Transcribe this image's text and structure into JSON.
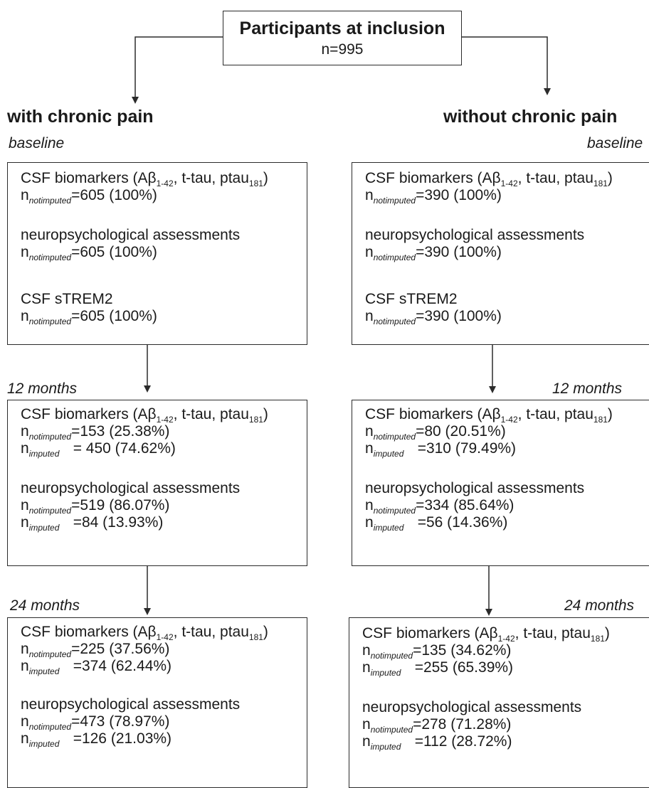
{
  "root": {
    "title": "Participants at inclusion",
    "n": "n=995"
  },
  "left": {
    "heading": "with chronic pain",
    "stages": [
      {
        "label": "baseline",
        "sections": [
          {
            "title": "CSF biomarkers (Aβ",
            "sub1": "1-42",
            "mid": ", t-tau, ptau",
            "sub2": "181",
            "end": ")",
            "counts": [
              {
                "sub": "notimputed",
                "pad": "",
                "value": "=605 (100%)"
              }
            ]
          },
          {
            "title": "neuropsychological assessments",
            "counts": [
              {
                "sub": "notimputed",
                "pad": "",
                "value": "=605 (100%)"
              }
            ]
          },
          {
            "title": "CSF sTREM2",
            "counts": [
              {
                "sub": "notimputed",
                "pad": "",
                "value": "=605 (100%)"
              }
            ]
          }
        ]
      },
      {
        "label": "12 months",
        "sections": [
          {
            "title": "CSF biomarkers (Aβ",
            "sub1": "1-42",
            "mid": ", t-tau, ptau",
            "sub2": "181",
            "end": ")",
            "counts": [
              {
                "sub": "notimputed",
                "value": "=153 (25.38%)"
              },
              {
                "sub": "imputed",
                "value": "= 450 (74.62%)"
              }
            ]
          },
          {
            "title": "neuropsychological assessments",
            "counts": [
              {
                "sub": "notimputed",
                "value": "=519 (86.07%)"
              },
              {
                "sub": "imputed",
                "value": "=84 (13.93%)"
              }
            ]
          }
        ]
      },
      {
        "label": "24 months",
        "sections": [
          {
            "title": "CSF biomarkers (Aβ",
            "sub1": "1-42",
            "mid": ", t-tau, ptau",
            "sub2": "181",
            "end": ")",
            "counts": [
              {
                "sub": "notimputed",
                "value": "=225 (37.56%)"
              },
              {
                "sub": "imputed",
                "value": "=374 (62.44%)"
              }
            ]
          },
          {
            "title": "neuropsychological assessments",
            "counts": [
              {
                "sub": "notimputed",
                "value": "=473 (78.97%)"
              },
              {
                "sub": "imputed",
                "value": "=126 (21.03%)"
              }
            ]
          }
        ]
      }
    ]
  },
  "right": {
    "heading": "without chronic pain",
    "stages": [
      {
        "label": "baseline",
        "sections": [
          {
            "title": "CSF biomarkers (Aβ",
            "sub1": "1-42",
            "mid": ", t-tau, ptau",
            "sub2": "181",
            "end": ")",
            "counts": [
              {
                "sub": "notimputed",
                "value": "=390 (100%)"
              }
            ]
          },
          {
            "title": "neuropsychological assessments",
            "counts": [
              {
                "sub": "notimputed",
                "value": "=390 (100%)"
              }
            ]
          },
          {
            "title": "CSF sTREM2",
            "counts": [
              {
                "sub": "notimputed",
                "value": "=390 (100%)"
              }
            ]
          }
        ]
      },
      {
        "label": "12 months",
        "sections": [
          {
            "title": "CSF biomarkers (Aβ",
            "sub1": "1-42",
            "mid": ", t-tau, ptau",
            "sub2": "181",
            "end": ")",
            "counts": [
              {
                "sub": "notimputed",
                "value": "=80 (20.51%)"
              },
              {
                "sub": "imputed",
                "value": "=310 (79.49%)"
              }
            ]
          },
          {
            "title": "neuropsychological assessments",
            "counts": [
              {
                "sub": "notimputed",
                "value": "=334 (85.64%)"
              },
              {
                "sub": "imputed",
                "value": "=56 (14.36%)"
              }
            ]
          }
        ]
      },
      {
        "label": "24 months",
        "sections": [
          {
            "title": "CSF biomarkers (Aβ",
            "sub1": "1-42",
            "mid": ", t-tau, ptau",
            "sub2": "181",
            "end": ")",
            "counts": [
              {
                "sub": "notimputed",
                "value": "=135 (34.62%)"
              },
              {
                "sub": "imputed",
                "value": "=255 (65.39%)"
              }
            ]
          },
          {
            "title": "neuropsychological assessments",
            "counts": [
              {
                "sub": "notimputed",
                "value": "=278 (71.28%)"
              },
              {
                "sub": "imputed",
                "value": "=112 (28.72%)"
              }
            ]
          }
        ]
      }
    ]
  }
}
